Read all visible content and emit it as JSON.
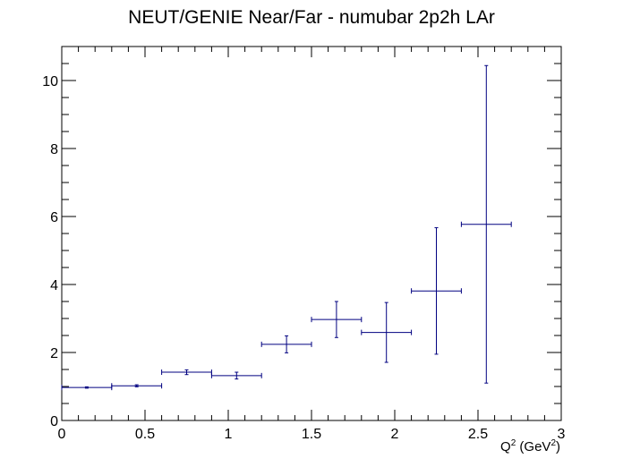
{
  "chart_data": {
    "type": "scatter",
    "title": "NEUT/GENIE Near/Far - numubar 2p2h LAr",
    "xlabel": "Q",
    "xlabel_sup": "2",
    "xlabel_unit": " (GeV",
    "xlabel_unit_sup": "2",
    "xlabel_close": ")",
    "ylabel": "",
    "xlim": [
      0,
      3
    ],
    "ylim": [
      0,
      11
    ],
    "x_major_ticks": [
      0,
      0.5,
      1,
      1.5,
      2,
      2.5,
      3
    ],
    "x_tick_labels": [
      "0",
      "0.5",
      "1",
      "1.5",
      "2",
      "2.5",
      "3"
    ],
    "y_major_ticks": [
      0,
      2,
      4,
      6,
      8,
      10
    ],
    "y_tick_labels": [
      "0",
      "2",
      "4",
      "6",
      "8",
      "10"
    ],
    "marker_color": "#000080",
    "series": [
      {
        "name": "NEUT/GENIE Near/Far",
        "points": [
          {
            "x": 0.15,
            "xerr": 0.15,
            "y": 0.97,
            "yerr": 0.02
          },
          {
            "x": 0.45,
            "xerr": 0.15,
            "y": 1.02,
            "yerr": 0.03
          },
          {
            "x": 0.75,
            "xerr": 0.15,
            "y": 1.42,
            "yerr": 0.07
          },
          {
            "x": 1.05,
            "xerr": 0.15,
            "y": 1.32,
            "yerr": 0.1
          },
          {
            "x": 1.35,
            "xerr": 0.15,
            "y": 2.24,
            "yerr": 0.25
          },
          {
            "x": 1.65,
            "xerr": 0.15,
            "y": 2.97,
            "yerr": 0.53
          },
          {
            "x": 1.95,
            "xerr": 0.15,
            "y": 2.59,
            "yerr": 0.88
          },
          {
            "x": 2.25,
            "xerr": 0.15,
            "y": 3.81,
            "yerr": 1.86
          },
          {
            "x": 2.55,
            "xerr": 0.15,
            "y": 5.77,
            "yerr": 4.67
          }
        ]
      }
    ]
  }
}
